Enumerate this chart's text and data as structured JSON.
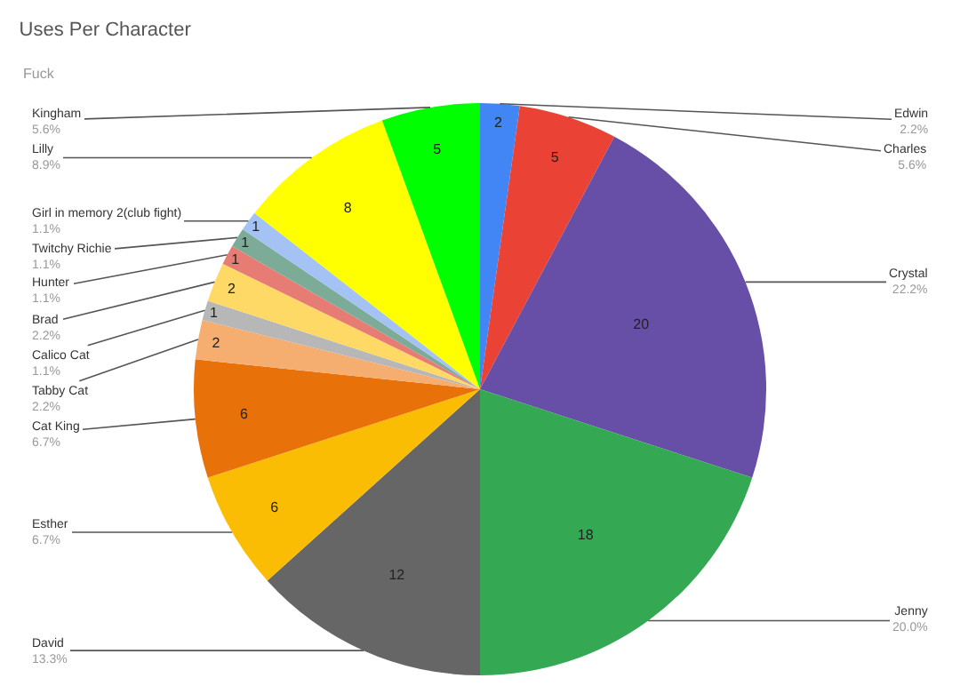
{
  "chart_data": {
    "type": "pie",
    "title": "Uses Per Character",
    "subtitle": "Fuck",
    "categories": [
      "Edwin",
      "Charles",
      "Crystal",
      "Jenny",
      "David",
      "Esther",
      "Cat King",
      "Tabby Cat",
      "Calico Cat",
      "Brad",
      "Hunter",
      "Twitchy Richie",
      "Girl in memory 2(club fight)",
      "Lilly",
      "Kingham"
    ],
    "values": [
      2,
      5,
      20,
      18,
      12,
      6,
      6,
      2,
      1,
      2,
      1,
      1,
      1,
      8,
      5
    ],
    "annotations": [
      "2.2%",
      "5.6%",
      "22.2%",
      "20.0%",
      "13.3%",
      "6.7%",
      "6.7%",
      "2.2%",
      "1.1%",
      "2.2%",
      "1.1%",
      "1.1%",
      "1.1%",
      "8.9%",
      "5.6%"
    ],
    "colors": [
      "#4285f4",
      "#ea4335",
      "#674ea7",
      "#34a853",
      "#666666",
      "#fbbc04",
      "#e8710a",
      "#f6ae70",
      "#b7b7b7",
      "#ffd966",
      "#e67c73",
      "#7cac98",
      "#a4c2f4",
      "#ffff00",
      "#00ff00"
    ],
    "data_labels": true
  }
}
